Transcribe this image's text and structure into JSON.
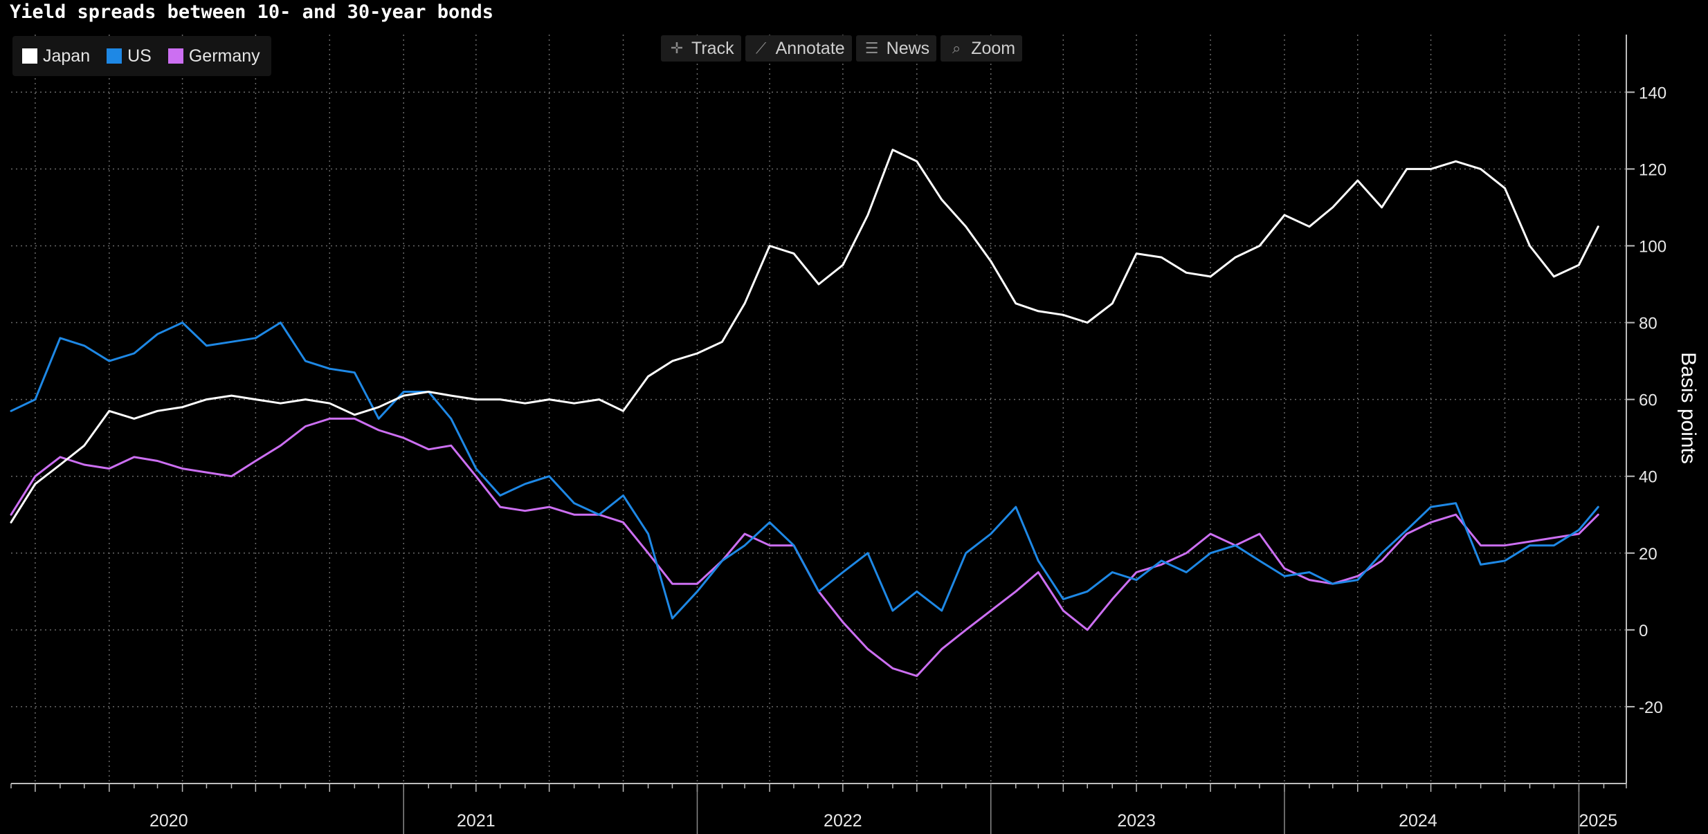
{
  "title": "Yield spreads between 10- and 30-year bonds",
  "toolbar": {
    "track": {
      "label": "Track",
      "icon": "crosshair-icon"
    },
    "annotate": {
      "label": "Annotate",
      "icon": "pencil-icon"
    },
    "news": {
      "label": "News",
      "icon": "list-icon"
    },
    "zoom": {
      "label": "Zoom",
      "icon": "magnifier-icon"
    }
  },
  "legend": [
    {
      "label": "Japan",
      "color": "#ffffff"
    },
    {
      "label": "US",
      "color": "#1e88e5"
    },
    {
      "label": "Germany",
      "color": "#cc6ff2"
    }
  ],
  "chart_data": {
    "type": "line",
    "ylabel": "Basis points",
    "ylim": [
      -40,
      155
    ],
    "yticks": [
      140,
      120,
      100,
      80,
      60,
      40,
      20,
      0,
      -20
    ],
    "xlim": [
      "2019-09-01",
      "2025-03-01"
    ],
    "year_labels": [
      {
        "label": "2020",
        "date": "2020-03-15"
      },
      {
        "label": "2021",
        "date": "2021-04-01"
      },
      {
        "label": "2022",
        "date": "2022-07-01"
      },
      {
        "label": "2023",
        "date": "2023-07-01"
      },
      {
        "label": "2024",
        "date": "2024-06-15"
      },
      {
        "label": "2025",
        "date": "2025-01-25"
      }
    ],
    "grid": true,
    "legend_position": "top-left",
    "series": [
      {
        "name": "Japan",
        "color": "#ffffff",
        "points": [
          [
            "2019-09-01",
            28
          ],
          [
            "2019-10-01",
            38
          ],
          [
            "2019-11-01",
            43
          ],
          [
            "2019-12-01",
            48
          ],
          [
            "2020-01-01",
            57
          ],
          [
            "2020-02-01",
            55
          ],
          [
            "2020-03-01",
            57
          ],
          [
            "2020-04-01",
            58
          ],
          [
            "2020-05-01",
            60
          ],
          [
            "2020-06-01",
            61
          ],
          [
            "2020-07-01",
            60
          ],
          [
            "2020-08-01",
            59
          ],
          [
            "2020-09-01",
            60
          ],
          [
            "2020-10-01",
            59
          ],
          [
            "2020-11-01",
            56
          ],
          [
            "2020-12-01",
            58
          ],
          [
            "2021-01-01",
            61
          ],
          [
            "2021-02-01",
            62
          ],
          [
            "2021-03-01",
            61
          ],
          [
            "2021-04-01",
            60
          ],
          [
            "2021-05-01",
            60
          ],
          [
            "2021-06-01",
            59
          ],
          [
            "2021-07-01",
            60
          ],
          [
            "2021-08-01",
            59
          ],
          [
            "2021-09-01",
            60
          ],
          [
            "2021-10-01",
            57
          ],
          [
            "2021-11-01",
            66
          ],
          [
            "2021-12-01",
            70
          ],
          [
            "2022-01-01",
            72
          ],
          [
            "2022-02-01",
            75
          ],
          [
            "2022-03-01",
            85
          ],
          [
            "2022-04-01",
            100
          ],
          [
            "2022-05-01",
            98
          ],
          [
            "2022-06-01",
            90
          ],
          [
            "2022-07-01",
            95
          ],
          [
            "2022-08-01",
            108
          ],
          [
            "2022-09-01",
            125
          ],
          [
            "2022-10-01",
            122
          ],
          [
            "2022-11-01",
            112
          ],
          [
            "2022-12-01",
            105
          ],
          [
            "2023-01-01",
            96
          ],
          [
            "2023-02-01",
            85
          ],
          [
            "2023-03-01",
            83
          ],
          [
            "2023-04-01",
            82
          ],
          [
            "2023-05-01",
            80
          ],
          [
            "2023-06-01",
            85
          ],
          [
            "2023-07-01",
            98
          ],
          [
            "2023-08-01",
            97
          ],
          [
            "2023-09-01",
            93
          ],
          [
            "2023-10-01",
            92
          ],
          [
            "2023-11-01",
            97
          ],
          [
            "2023-12-01",
            100
          ],
          [
            "2024-01-01",
            108
          ],
          [
            "2024-02-01",
            105
          ],
          [
            "2024-03-01",
            110
          ],
          [
            "2024-04-01",
            117
          ],
          [
            "2024-05-01",
            110
          ],
          [
            "2024-06-01",
            120
          ],
          [
            "2024-07-01",
            120
          ],
          [
            "2024-08-01",
            122
          ],
          [
            "2024-09-01",
            120
          ],
          [
            "2024-10-01",
            115
          ],
          [
            "2024-11-01",
            100
          ],
          [
            "2024-12-01",
            92
          ],
          [
            "2025-01-01",
            95
          ],
          [
            "2025-01-25",
            105
          ]
        ]
      },
      {
        "name": "US",
        "color": "#1e88e5",
        "points": [
          [
            "2019-09-01",
            57
          ],
          [
            "2019-10-01",
            60
          ],
          [
            "2019-11-01",
            76
          ],
          [
            "2019-12-01",
            74
          ],
          [
            "2020-01-01",
            70
          ],
          [
            "2020-02-01",
            72
          ],
          [
            "2020-03-01",
            77
          ],
          [
            "2020-04-01",
            80
          ],
          [
            "2020-05-01",
            74
          ],
          [
            "2020-06-01",
            75
          ],
          [
            "2020-07-01",
            76
          ],
          [
            "2020-08-01",
            80
          ],
          [
            "2020-09-01",
            70
          ],
          [
            "2020-10-01",
            68
          ],
          [
            "2020-11-01",
            67
          ],
          [
            "2020-12-01",
            55
          ],
          [
            "2021-01-01",
            62
          ],
          [
            "2021-02-01",
            62
          ],
          [
            "2021-03-01",
            55
          ],
          [
            "2021-04-01",
            42
          ],
          [
            "2021-05-01",
            35
          ],
          [
            "2021-06-01",
            38
          ],
          [
            "2021-07-01",
            40
          ],
          [
            "2021-08-01",
            33
          ],
          [
            "2021-09-01",
            30
          ],
          [
            "2021-10-01",
            35
          ],
          [
            "2021-11-01",
            25
          ],
          [
            "2021-12-01",
            3
          ],
          [
            "2022-01-01",
            10
          ],
          [
            "2022-02-01",
            18
          ],
          [
            "2022-03-01",
            22
          ],
          [
            "2022-04-01",
            28
          ],
          [
            "2022-05-01",
            22
          ],
          [
            "2022-06-01",
            10
          ],
          [
            "2022-07-01",
            15
          ],
          [
            "2022-08-01",
            20
          ],
          [
            "2022-09-01",
            5
          ],
          [
            "2022-10-01",
            10
          ],
          [
            "2022-11-01",
            5
          ],
          [
            "2022-12-01",
            20
          ],
          [
            "2023-01-01",
            25
          ],
          [
            "2023-02-01",
            32
          ],
          [
            "2023-03-01",
            18
          ],
          [
            "2023-04-01",
            8
          ],
          [
            "2023-05-01",
            10
          ],
          [
            "2023-06-01",
            15
          ],
          [
            "2023-07-01",
            13
          ],
          [
            "2023-08-01",
            18
          ],
          [
            "2023-09-01",
            15
          ],
          [
            "2023-10-01",
            20
          ],
          [
            "2023-11-01",
            22
          ],
          [
            "2023-12-01",
            18
          ],
          [
            "2024-01-01",
            14
          ],
          [
            "2024-02-01",
            15
          ],
          [
            "2024-03-01",
            12
          ],
          [
            "2024-04-01",
            13
          ],
          [
            "2024-05-01",
            20
          ],
          [
            "2024-06-01",
            26
          ],
          [
            "2024-07-01",
            32
          ],
          [
            "2024-08-01",
            33
          ],
          [
            "2024-09-01",
            17
          ],
          [
            "2024-10-01",
            18
          ],
          [
            "2024-11-01",
            22
          ],
          [
            "2024-12-01",
            22
          ],
          [
            "2025-01-01",
            26
          ],
          [
            "2025-01-25",
            32
          ]
        ]
      },
      {
        "name": "Germany",
        "color": "#cc6ff2",
        "points": [
          [
            "2019-09-01",
            30
          ],
          [
            "2019-10-01",
            40
          ],
          [
            "2019-11-01",
            45
          ],
          [
            "2019-12-01",
            43
          ],
          [
            "2020-01-01",
            42
          ],
          [
            "2020-02-01",
            45
          ],
          [
            "2020-03-01",
            44
          ],
          [
            "2020-04-01",
            42
          ],
          [
            "2020-05-01",
            41
          ],
          [
            "2020-06-01",
            40
          ],
          [
            "2020-07-01",
            44
          ],
          [
            "2020-08-01",
            48
          ],
          [
            "2020-09-01",
            53
          ],
          [
            "2020-10-01",
            55
          ],
          [
            "2020-11-01",
            55
          ],
          [
            "2020-12-01",
            52
          ],
          [
            "2021-01-01",
            50
          ],
          [
            "2021-02-01",
            47
          ],
          [
            "2021-03-01",
            48
          ],
          [
            "2021-04-01",
            40
          ],
          [
            "2021-05-01",
            32
          ],
          [
            "2021-06-01",
            31
          ],
          [
            "2021-07-01",
            32
          ],
          [
            "2021-08-01",
            30
          ],
          [
            "2021-09-01",
            30
          ],
          [
            "2021-10-01",
            28
          ],
          [
            "2021-11-01",
            20
          ],
          [
            "2021-12-01",
            12
          ],
          [
            "2022-01-01",
            12
          ],
          [
            "2022-02-01",
            18
          ],
          [
            "2022-03-01",
            25
          ],
          [
            "2022-04-01",
            22
          ],
          [
            "2022-05-01",
            22
          ],
          [
            "2022-06-01",
            10
          ],
          [
            "2022-07-01",
            2
          ],
          [
            "2022-08-01",
            -5
          ],
          [
            "2022-09-01",
            -10
          ],
          [
            "2022-10-01",
            -12
          ],
          [
            "2022-11-01",
            -5
          ],
          [
            "2022-12-01",
            0
          ],
          [
            "2023-01-01",
            5
          ],
          [
            "2023-02-01",
            10
          ],
          [
            "2023-03-01",
            15
          ],
          [
            "2023-04-01",
            5
          ],
          [
            "2023-05-01",
            0
          ],
          [
            "2023-06-01",
            8
          ],
          [
            "2023-07-01",
            15
          ],
          [
            "2023-08-01",
            17
          ],
          [
            "2023-09-01",
            20
          ],
          [
            "2023-10-01",
            25
          ],
          [
            "2023-11-01",
            22
          ],
          [
            "2023-12-01",
            25
          ],
          [
            "2024-01-01",
            16
          ],
          [
            "2024-02-01",
            13
          ],
          [
            "2024-03-01",
            12
          ],
          [
            "2024-04-01",
            14
          ],
          [
            "2024-05-01",
            18
          ],
          [
            "2024-06-01",
            25
          ],
          [
            "2024-07-01",
            28
          ],
          [
            "2024-08-01",
            30
          ],
          [
            "2024-09-01",
            22
          ],
          [
            "2024-10-01",
            22
          ],
          [
            "2024-11-01",
            23
          ],
          [
            "2024-12-01",
            24
          ],
          [
            "2025-01-01",
            25
          ],
          [
            "2025-01-25",
            30
          ]
        ]
      }
    ]
  }
}
